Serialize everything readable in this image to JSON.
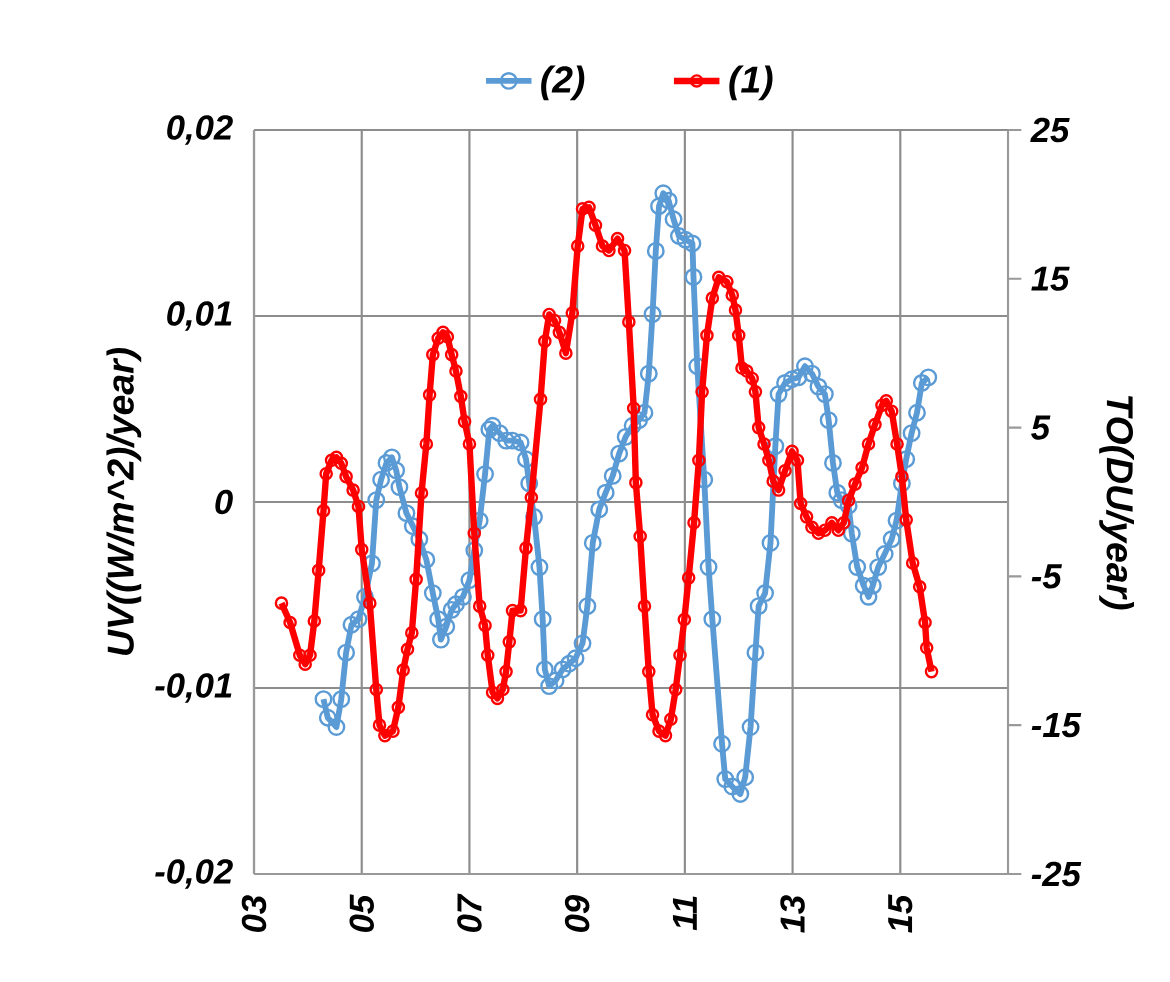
{
  "chart_data": {
    "type": "line",
    "ylabel": "UV((W/m^2)/year)",
    "y2label": "TO(DU/year)",
    "xlim": [
      2003,
      2017
    ],
    "xticks": [
      {
        "value": 2003,
        "label": "03"
      },
      {
        "value": 2005,
        "label": "05"
      },
      {
        "value": 2007,
        "label": "07"
      },
      {
        "value": 2009,
        "label": "09"
      },
      {
        "value": 2011,
        "label": "11"
      },
      {
        "value": 2013,
        "label": "13"
      },
      {
        "value": 2015,
        "label": "15"
      }
    ],
    "ylim": [
      -0.02,
      0.02
    ],
    "yticks": [
      {
        "value": -0.02,
        "label": "-0,02"
      },
      {
        "value": -0.01,
        "label": "-0,01"
      },
      0,
      {
        "value": 0.01,
        "label": "0,01"
      },
      {
        "value": 0.02,
        "label": "0,02"
      }
    ],
    "y2lim": [
      -25,
      25
    ],
    "y2ticks": [
      -25,
      -15,
      -5,
      5,
      15,
      25
    ],
    "grid": true,
    "legend": "top",
    "marker": "circle",
    "line_style": "solid",
    "series": [
      {
        "name": "(2)",
        "color": "#5b9bd5",
        "axis": "y",
        "x": [
          2004.29,
          2004.37,
          2004.53,
          2004.62,
          2004.71,
          2004.81,
          2004.94,
          2005.06,
          2005.19,
          2005.27,
          2005.36,
          2005.46,
          2005.56,
          2005.64,
          2005.7,
          2005.83,
          2005.95,
          2006.07,
          2006.2,
          2006.32,
          2006.42,
          2006.47,
          2006.57,
          2006.67,
          2006.75,
          2006.88,
          2007.0,
          2007.09,
          2007.19,
          2007.29,
          2007.37,
          2007.43,
          2007.56,
          2007.68,
          2007.8,
          2007.95,
          2008.05,
          2008.11,
          2008.2,
          2008.3,
          2008.36,
          2008.4,
          2008.48,
          2008.6,
          2008.73,
          2008.85,
          2008.97,
          2009.1,
          2009.19,
          2009.29,
          2009.41,
          2009.53,
          2009.66,
          2009.78,
          2009.9,
          2010.03,
          2010.15,
          2010.25,
          2010.33,
          2010.4,
          2010.46,
          2010.52,
          2010.6,
          2010.7,
          2010.79,
          2010.89,
          2011.01,
          2011.14,
          2011.16,
          2011.23,
          2011.36,
          2011.44,
          2011.51,
          2011.69,
          2011.75,
          2011.88,
          2012.03,
          2012.12,
          2012.22,
          2012.31,
          2012.37,
          2012.49,
          2012.59,
          2012.68,
          2012.74,
          2012.86,
          2012.99,
          2013.11,
          2013.23,
          2013.36,
          2013.48,
          2013.6,
          2013.67,
          2013.75,
          2013.83,
          2013.91,
          2014.04,
          2014.1,
          2014.2,
          2014.32,
          2014.41,
          2014.49,
          2014.59,
          2014.71,
          2014.84,
          2014.93,
          2015.03,
          2015.11,
          2015.21,
          2015.31,
          2015.4,
          2015.52
        ],
        "values": [
          -0.0106,
          -0.0116,
          -0.0121,
          -0.0106,
          -0.0081,
          -0.0066,
          -0.0063,
          -0.0051,
          -0.0033,
          0.0001,
          0.0012,
          0.0021,
          0.0024,
          0.0017,
          0.0008,
          -0.0006,
          -0.0013,
          -0.002,
          -0.0031,
          -0.0049,
          -0.0063,
          -0.0074,
          -0.0067,
          -0.0058,
          -0.0055,
          -0.0051,
          -0.0042,
          -0.0026,
          -0.001,
          0.0015,
          0.0039,
          0.0041,
          0.0037,
          0.0033,
          0.0033,
          0.0032,
          0.0023,
          0.001,
          -0.0008,
          -0.0035,
          -0.0063,
          -0.009,
          -0.0099,
          -0.0096,
          -0.009,
          -0.0087,
          -0.0084,
          -0.0076,
          -0.0056,
          -0.0022,
          -0.0004,
          0.0005,
          0.0014,
          0.0026,
          0.0035,
          0.0041,
          0.0044,
          0.0048,
          0.0069,
          0.0101,
          0.0135,
          0.0159,
          0.0166,
          0.0162,
          0.0152,
          0.0143,
          0.0141,
          0.0139,
          0.0121,
          0.0073,
          0.0012,
          -0.0035,
          -0.0063,
          -0.013,
          -0.0149,
          -0.0153,
          -0.0157,
          -0.0148,
          -0.0121,
          -0.0081,
          -0.0056,
          -0.0049,
          -0.0022,
          0.003,
          0.0058,
          0.0064,
          0.0066,
          0.0067,
          0.0073,
          0.0069,
          0.0062,
          0.0058,
          0.0044,
          0.0021,
          0.0005,
          0.0001,
          -0.0002,
          -0.0017,
          -0.0035,
          -0.0045,
          -0.0051,
          -0.0045,
          -0.0035,
          -0.0028,
          -0.002,
          -0.001,
          0.001,
          0.0023,
          0.0037,
          0.0048,
          0.0064,
          0.0067
        ]
      },
      {
        "name": "(1)",
        "color": "#ff0000",
        "axis": "y2",
        "x": [
          2003.51,
          2003.67,
          2003.85,
          2003.95,
          2004.04,
          2004.12,
          2004.2,
          2004.29,
          2004.34,
          2004.44,
          2004.53,
          2004.62,
          2004.71,
          2004.84,
          2004.94,
          2005.0,
          2005.15,
          2005.27,
          2005.33,
          2005.43,
          2005.58,
          2005.68,
          2005.77,
          2005.85,
          2005.93,
          2006.01,
          2006.11,
          2006.2,
          2006.26,
          2006.32,
          2006.42,
          2006.51,
          2006.59,
          2006.67,
          2006.75,
          2006.84,
          2006.91,
          2007.0,
          2007.09,
          2007.19,
          2007.29,
          2007.34,
          2007.43,
          2007.52,
          2007.62,
          2007.68,
          2007.74,
          2007.8,
          2007.95,
          2008.05,
          2008.15,
          2008.32,
          2008.4,
          2008.48,
          2008.58,
          2008.67,
          2008.79,
          2008.91,
          2009.01,
          2009.1,
          2009.22,
          2009.34,
          2009.47,
          2009.59,
          2009.75,
          2009.88,
          2009.96,
          2010.05,
          2010.09,
          2010.17,
          2010.25,
          2010.33,
          2010.4,
          2010.52,
          2010.64,
          2010.74,
          2010.83,
          2010.91,
          2010.99,
          2011.07,
          2011.17,
          2011.26,
          2011.32,
          2011.41,
          2011.51,
          2011.63,
          2011.78,
          2011.88,
          2011.94,
          2012.0,
          2012.06,
          2012.15,
          2012.25,
          2012.31,
          2012.37,
          2012.47,
          2012.56,
          2012.64,
          2012.74,
          2012.86,
          2012.99,
          2013.09,
          2013.15,
          2013.26,
          2013.36,
          2013.48,
          2013.6,
          2013.73,
          2013.85,
          2013.95,
          2014.04,
          2014.16,
          2014.29,
          2014.41,
          2014.53,
          2014.66,
          2014.74,
          2014.84,
          2014.94,
          2015.03,
          2015.11,
          2015.23,
          2015.36,
          2015.46,
          2015.49,
          2015.58
        ],
        "values": [
          -6.8,
          -8.1,
          -10.3,
          -10.9,
          -10.3,
          -8.0,
          -4.6,
          -0.6,
          1.9,
          2.8,
          3.0,
          2.6,
          1.7,
          0.8,
          -0.3,
          -3.2,
          -6.8,
          -12.6,
          -15.0,
          -15.7,
          -15.4,
          -13.8,
          -11.3,
          -9.9,
          -8.8,
          -5.2,
          0.6,
          3.9,
          7.2,
          9.9,
          11.0,
          11.4,
          11.1,
          9.9,
          8.8,
          7.1,
          5.4,
          3.9,
          -2.1,
          -7.0,
          -8.3,
          -10.3,
          -12.8,
          -13.2,
          -12.6,
          -11.4,
          -9.4,
          -7.3,
          -7.3,
          -3.1,
          0.3,
          6.9,
          10.8,
          12.6,
          12.2,
          11.4,
          10.0,
          12.7,
          17.2,
          19.7,
          19.8,
          18.6,
          17.2,
          16.9,
          17.7,
          16.9,
          12.1,
          6.3,
          1.3,
          -2.3,
          -7.0,
          -11.4,
          -14.3,
          -15.4,
          -15.7,
          -14.6,
          -12.6,
          -10.3,
          -7.9,
          -5.1,
          -1.4,
          2.8,
          7.4,
          11.2,
          13.7,
          15.1,
          14.8,
          13.9,
          12.9,
          11.2,
          9.0,
          8.8,
          8.3,
          7.4,
          5.0,
          3.9,
          2.8,
          1.4,
          0.8,
          2.1,
          3.4,
          2.8,
          -0.1,
          -1.0,
          -1.7,
          -2.1,
          -1.9,
          -1.4,
          -1.9,
          -1.4,
          0.1,
          1.2,
          2.3,
          3.9,
          5.2,
          6.5,
          6.8,
          6.1,
          3.9,
          1.7,
          -1.2,
          -4.1,
          -5.7,
          -8.1,
          -9.8,
          -11.4
        ]
      }
    ]
  }
}
